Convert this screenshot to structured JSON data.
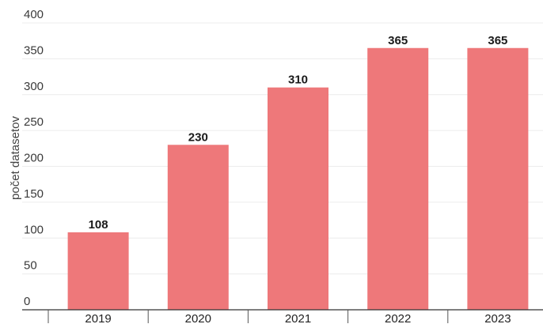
{
  "chart_data": {
    "type": "bar",
    "categories": [
      "2019",
      "2020",
      "2021",
      "2022",
      "2023"
    ],
    "values": [
      108,
      230,
      310,
      365,
      365
    ],
    "title": "",
    "xlabel": "",
    "ylabel": "počet datasetov",
    "ylim": [
      0,
      400
    ],
    "yticks": [
      0,
      50,
      100,
      150,
      200,
      250,
      300,
      350,
      400
    ],
    "grid": true,
    "bar_color": "#ee787a",
    "data_labels": [
      "108",
      "230",
      "310",
      "365",
      "365"
    ]
  }
}
